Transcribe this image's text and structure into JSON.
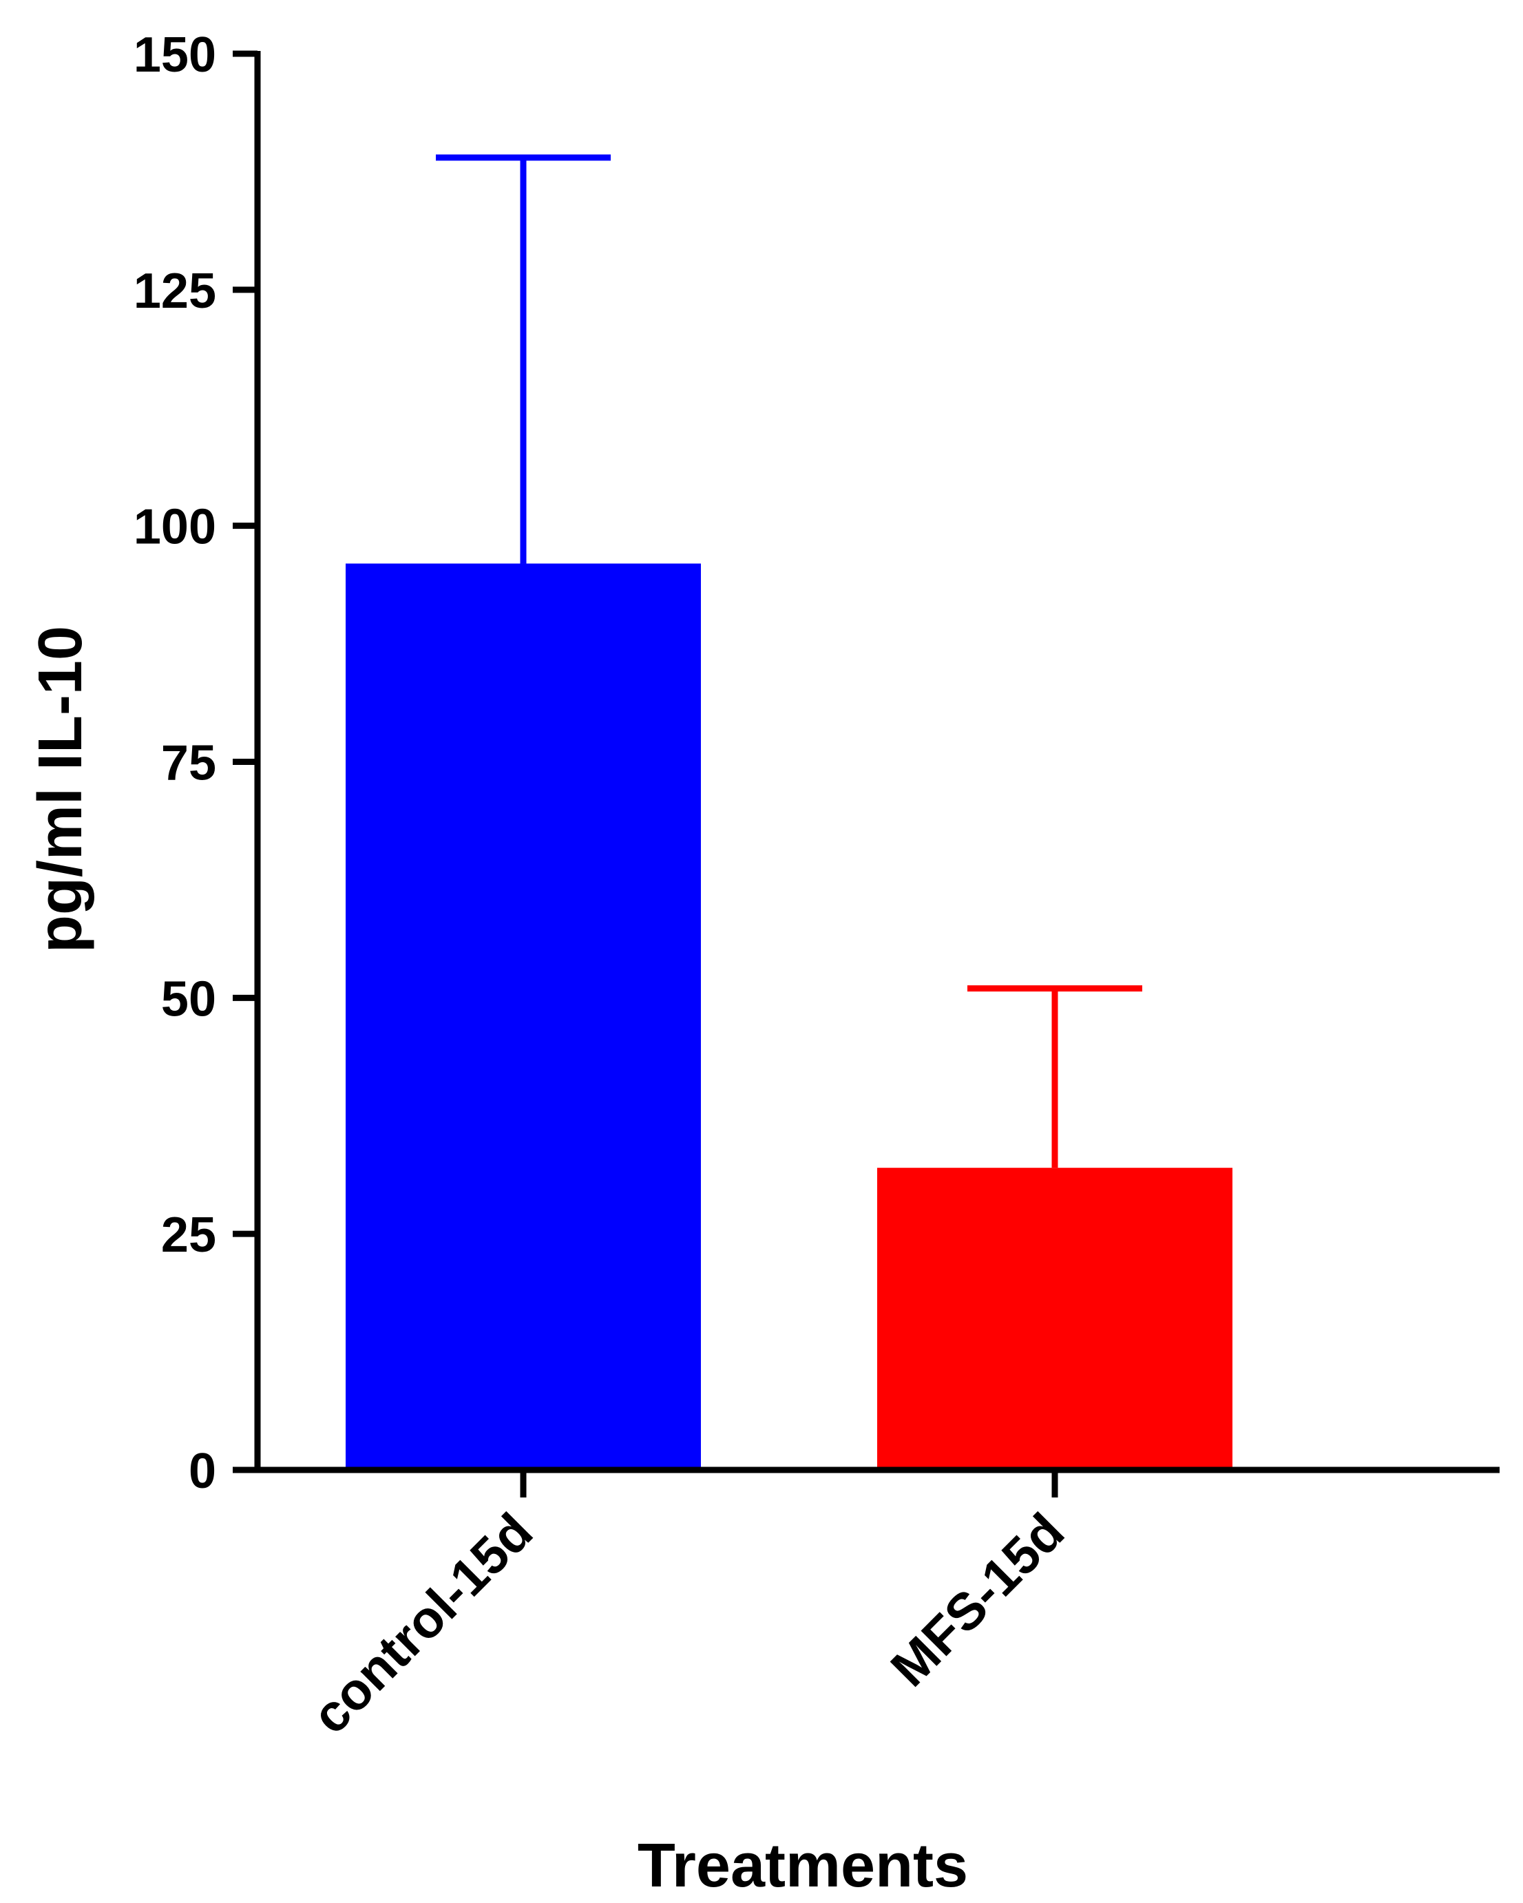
{
  "chart_data": {
    "type": "bar",
    "categories": [
      "control-15d",
      "MFS-15d"
    ],
    "values": [
      96,
      32
    ],
    "error_upper": [
      139,
      51
    ],
    "colors": [
      "#0000ff",
      "#ff0000"
    ],
    "xlabel": "Treatments",
    "ylabel": "pg/ml IL-10",
    "ylim": [
      0,
      150
    ],
    "yticks": [
      0,
      25,
      50,
      75,
      100,
      125,
      150
    ],
    "grid": false,
    "legend": "none"
  }
}
